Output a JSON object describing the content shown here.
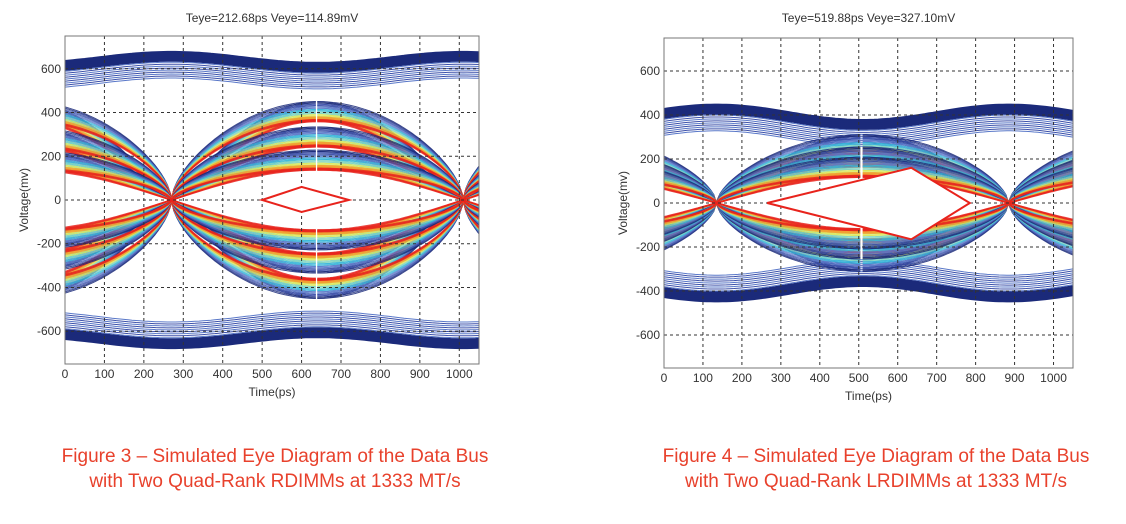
{
  "chart_data": [
    {
      "type": "eye-diagram-contour",
      "title": "Teye=212.68ps Veye=114.89mV",
      "teye": "212.68ps",
      "veye": "114.89mV",
      "xlabel": "Time(ps)",
      "ylabel": "Voltage(mv)",
      "xlim": [
        0,
        1050
      ],
      "ylim": [
        -750,
        750
      ],
      "xticks": [
        "0",
        "100",
        "200",
        "300",
        "400",
        "500",
        "600",
        "700",
        "800",
        "900",
        "1000"
      ],
      "yticks": [
        "600",
        "400",
        "200",
        "0",
        "-200",
        "-400",
        "-600"
      ],
      "grid": true,
      "eye_mask": {
        "color": "#e8231c",
        "points": [
          [
            500,
            0
          ],
          [
            600,
            60
          ],
          [
            720,
            0
          ],
          [
            600,
            -55
          ]
        ]
      },
      "colormap": [
        "#1b2a7a",
        "#3b4fa8",
        "#5a78c8",
        "#37b6d8",
        "#7fd3c0",
        "#d9e85a",
        "#f0a030",
        "#e8231c"
      ]
    },
    {
      "type": "eye-diagram-contour",
      "title": "Teye=519.88ps Veye=327.10mV",
      "teye": "519.88ps",
      "veye": "327.10mV",
      "xlabel": "Time(ps)",
      "ylabel": "Voltage(mv)",
      "xlim": [
        0,
        1050
      ],
      "ylim": [
        -750,
        750
      ],
      "xticks": [
        "0",
        "100",
        "200",
        "300",
        "400",
        "500",
        "600",
        "700",
        "800",
        "900",
        "1000"
      ],
      "yticks": [
        "600",
        "400",
        "200",
        "0",
        "-200",
        "-400",
        "-600"
      ],
      "grid": true,
      "eye_mask": {
        "color": "#e8231c",
        "points": [
          [
            265,
            0
          ],
          [
            635,
            160
          ],
          [
            785,
            0
          ],
          [
            635,
            -165
          ]
        ]
      },
      "colormap": [
        "#1b2a7a",
        "#3b4fa8",
        "#5a78c8",
        "#37b6d8",
        "#7fd3c0",
        "#d9e85a",
        "#f0a030",
        "#e8231c"
      ]
    }
  ],
  "captions": [
    {
      "line1": "Figure 3 – Simulated Eye Diagram of the Data Bus",
      "line2": "with Two Quad-Rank RDIMMs at 1333 MT/s"
    },
    {
      "line1": "Figure 4 – Simulated Eye Diagram of the Data Bus",
      "line2": "with Two Quad-Rank LRDIMMs at 1333 MT/s"
    }
  ]
}
